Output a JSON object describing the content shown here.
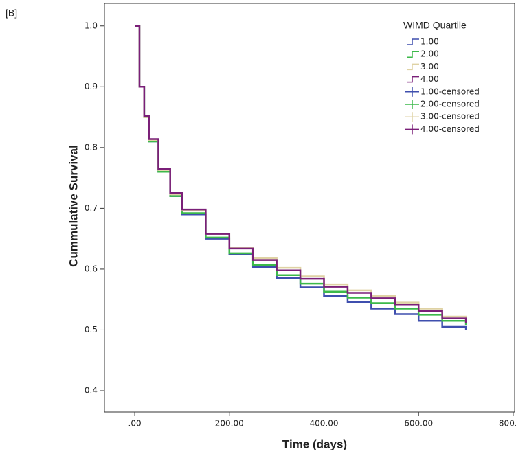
{
  "panel_label": "[B]",
  "chart_data": {
    "type": "step-line",
    "x_label": "Time (days)",
    "y_label": "Cummulative Survival",
    "legend_title": "WIMD Quartile",
    "legend_position": "upper right",
    "x": [
      0,
      10,
      20,
      30,
      50,
      75,
      100,
      150,
      200,
      250,
      300,
      350,
      400,
      450,
      500,
      550,
      600,
      650,
      700
    ],
    "series": [
      {
        "name": "1.00",
        "color": "#3f4fae",
        "values": [
          1.0,
          0.9,
          0.85,
          0.81,
          0.76,
          0.72,
          0.69,
          0.65,
          0.624,
          0.603,
          0.585,
          0.57,
          0.556,
          0.546,
          0.535,
          0.526,
          0.515,
          0.505,
          0.5
        ]
      },
      {
        "name": "2.00",
        "color": "#3cb94a",
        "values": [
          1.0,
          0.9,
          0.85,
          0.81,
          0.76,
          0.72,
          0.692,
          0.652,
          0.626,
          0.607,
          0.59,
          0.576,
          0.563,
          0.553,
          0.544,
          0.535,
          0.525,
          0.515,
          0.508
        ]
      },
      {
        "name": "3.00",
        "color": "#dfd2a4",
        "values": [
          1.0,
          0.9,
          0.85,
          0.812,
          0.763,
          0.723,
          0.696,
          0.658,
          0.635,
          0.618,
          0.602,
          0.588,
          0.575,
          0.565,
          0.556,
          0.545,
          0.535,
          0.522,
          0.515
        ]
      },
      {
        "name": "4.00",
        "color": "#7a1f78",
        "values": [
          1.0,
          0.9,
          0.852,
          0.814,
          0.765,
          0.725,
          0.698,
          0.658,
          0.634,
          0.615,
          0.598,
          0.584,
          0.571,
          0.561,
          0.552,
          0.542,
          0.531,
          0.519,
          0.511
        ]
      }
    ],
    "censored_legend": [
      "1.00-censored",
      "2.00-censored",
      "3.00-censored",
      "4.00-censored"
    ],
    "xlim": [
      -64,
      803
    ],
    "ylim": [
      0.365,
      1.037
    ],
    "xticks": [
      {
        "value": 0,
        "label": ".00"
      },
      {
        "value": 200,
        "label": "200.00"
      },
      {
        "value": 400,
        "label": "400.00"
      },
      {
        "value": 600,
        "label": "600.00"
      },
      {
        "value": 800,
        "label": "800.00"
      }
    ],
    "yticks": [
      0.4,
      0.5,
      0.6,
      0.7,
      0.8,
      0.9,
      {
        "value": 1.0,
        "label": "1.0"
      }
    ]
  }
}
